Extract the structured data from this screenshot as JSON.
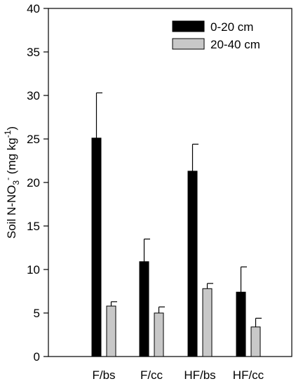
{
  "chart_data": {
    "type": "bar",
    "categories": [
      "F/bs",
      "F/cc",
      "HF/bs",
      "HF/cc"
    ],
    "series": [
      {
        "name": "0-20 cm",
        "color": "#000000",
        "values": [
          25.1,
          10.9,
          21.3,
          7.4
        ],
        "errors": [
          5.2,
          2.6,
          3.1,
          2.9
        ]
      },
      {
        "name": "20-40 cm",
        "color": "#c8c8c8",
        "values": [
          5.8,
          5.0,
          7.8,
          3.4
        ],
        "errors": [
          0.5,
          0.7,
          0.6,
          1.0
        ]
      }
    ],
    "ylabel": {
      "main": "Soil N-NO",
      "sub": "3",
      "sup1": "-",
      "unit": " (mg kg",
      "sup2": "-1",
      "close": ")"
    },
    "ylim": [
      0,
      40
    ],
    "yticks": [
      0,
      5,
      10,
      15,
      20,
      25,
      30,
      35,
      40
    ],
    "legend_position": "top-right",
    "grid": false
  }
}
